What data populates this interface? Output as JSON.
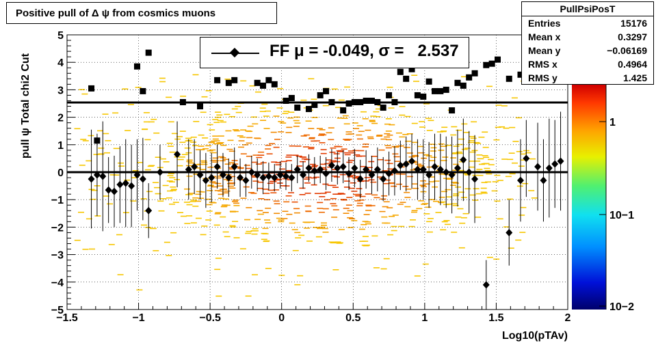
{
  "title": "Positive pull of Δ ψ from cosmics muons",
  "stats": {
    "name": "PullPsiPosT",
    "rows": [
      {
        "label": "Entries",
        "value": "15176"
      },
      {
        "label": "Mean x",
        "value": "0.3297"
      },
      {
        "label": "Mean y",
        "value": "−0.06169"
      },
      {
        "label": "RMS x",
        "value": "0.4964"
      },
      {
        "label": "RMS y",
        "value": "1.425"
      }
    ]
  },
  "legend": {
    "label": "FF μ = -0.049, σ =   2.537"
  },
  "chart_data": {
    "type": "scatter",
    "title": "Positive pull of Δ ψ from cosmics muons",
    "xlabel": "Log10(pTAv)",
    "ylabel": "pull ψ    Total chi2 Cut",
    "xlim": [
      -1.5,
      2
    ],
    "ylim": [
      -5,
      5
    ],
    "xticks": [
      "−1.5",
      "−1",
      "−0.5",
      "0",
      "0.5",
      "1",
      "1.5",
      "2"
    ],
    "yticks": [
      "−5",
      "−4",
      "−3",
      "−2",
      "−1",
      "0",
      "1",
      "2",
      "3",
      "4",
      "5"
    ],
    "grid": true,
    "colorbar": {
      "scale": "log",
      "labels": [
        "1",
        "10−1",
        "10−2"
      ]
    },
    "horizontal_lines": [
      0,
      2.537
    ],
    "series": [
      {
        "name": "FF μ = -0.049, σ =   2.537",
        "marker": "diamond",
        "x": [
          -1.33,
          -1.29,
          -1.25,
          -1.21,
          -1.17,
          -1.13,
          -1.09,
          -1.05,
          -1.01,
          -0.97,
          -0.93,
          -0.85,
          -0.73,
          -0.65,
          -0.61,
          -0.57,
          -0.53,
          -0.49,
          -0.45,
          -0.41,
          -0.37,
          -0.33,
          -0.29,
          -0.25,
          -0.21,
          -0.17,
          -0.13,
          -0.09,
          -0.05,
          -0.01,
          0.03,
          0.07,
          0.11,
          0.15,
          0.19,
          0.23,
          0.27,
          0.31,
          0.35,
          0.39,
          0.43,
          0.47,
          0.51,
          0.55,
          0.59,
          0.63,
          0.67,
          0.71,
          0.75,
          0.79,
          0.83,
          0.87,
          0.91,
          0.95,
          0.99,
          1.03,
          1.07,
          1.11,
          1.15,
          1.19,
          1.23,
          1.27,
          1.31,
          1.35,
          1.43,
          1.59,
          1.67,
          1.71,
          1.79,
          1.83,
          1.87,
          1.91,
          1.95
        ],
        "y": [
          -0.25,
          -0.1,
          -0.15,
          -0.65,
          -0.7,
          -0.45,
          -0.4,
          -0.5,
          -0.1,
          -0.25,
          -1.4,
          0.0,
          0.65,
          0.1,
          0.2,
          -0.1,
          -0.3,
          -0.2,
          0.2,
          -0.1,
          -0.2,
          0.2,
          -0.2,
          -0.3,
          0.0,
          -0.1,
          -0.2,
          -0.15,
          -0.2,
          -0.1,
          -0.15,
          -0.2,
          0.1,
          -0.1,
          0.15,
          0.05,
          0.1,
          -0.05,
          0.25,
          0.15,
          0.2,
          -0.05,
          0.15,
          -0.25,
          0.1,
          -0.1,
          0.1,
          -0.25,
          -0.05,
          0.05,
          0.25,
          0.3,
          0.4,
          0.1,
          0.1,
          -0.1,
          0.2,
          0.1,
          0.0,
          -0.1,
          0.15,
          0.45,
          0.0,
          -0.25,
          -4.1,
          -2.2,
          -0.3,
          0.5,
          0.2,
          -0.3,
          0.15,
          0.3,
          0.4
        ],
        "err_low": [
          1.8,
          1.5,
          2.0,
          1.2,
          1.3,
          1.4,
          1.6,
          1.5,
          1.3,
          1.5,
          1.0,
          1.0,
          1.2,
          1.1,
          1.0,
          0.9,
          1.0,
          0.9,
          0.8,
          0.8,
          0.7,
          0.7,
          0.7,
          0.6,
          0.6,
          0.6,
          0.6,
          0.5,
          0.5,
          0.5,
          0.5,
          0.5,
          0.5,
          0.5,
          0.5,
          0.5,
          0.5,
          0.6,
          0.6,
          0.6,
          0.6,
          0.6,
          0.7,
          0.7,
          0.7,
          0.7,
          0.8,
          0.8,
          0.8,
          0.9,
          0.9,
          1.0,
          1.0,
          1.1,
          1.1,
          1.2,
          1.2,
          1.3,
          1.3,
          1.4,
          1.4,
          1.5,
          1.5,
          1.6,
          0.9,
          1.2,
          1.5,
          1.4,
          1.6,
          1.5,
          1.8,
          1.6,
          1.8
        ],
        "err_high": [
          1.8,
          1.5,
          2.0,
          1.2,
          1.3,
          1.4,
          1.6,
          1.5,
          1.3,
          1.5,
          1.0,
          1.0,
          1.2,
          1.1,
          1.0,
          0.9,
          1.0,
          0.9,
          0.8,
          0.8,
          0.7,
          0.7,
          0.7,
          0.6,
          0.6,
          0.6,
          0.6,
          0.5,
          0.5,
          0.5,
          0.5,
          0.5,
          0.5,
          0.5,
          0.5,
          0.5,
          0.5,
          0.6,
          0.6,
          0.6,
          0.6,
          0.6,
          0.7,
          0.7,
          0.7,
          0.7,
          0.8,
          0.8,
          0.8,
          0.9,
          0.9,
          1.0,
          1.0,
          1.1,
          1.1,
          1.2,
          1.2,
          1.3,
          1.3,
          1.4,
          1.4,
          1.5,
          1.5,
          1.6,
          0.9,
          1.2,
          1.5,
          1.4,
          1.6,
          1.5,
          1.8,
          1.6,
          1.8
        ]
      },
      {
        "marker": "square",
        "x": [
          -1.33,
          -1.29,
          -1.01,
          -0.97,
          -0.93,
          -0.69,
          -0.57,
          -0.45,
          -0.37,
          -0.33,
          -0.17,
          -0.13,
          -0.09,
          -0.05,
          0.03,
          0.07,
          0.11,
          0.19,
          0.23,
          0.27,
          0.31,
          0.35,
          0.43,
          0.47,
          0.51,
          0.55,
          0.59,
          0.63,
          0.67,
          0.71,
          0.75,
          0.79,
          0.83,
          0.87,
          0.91,
          0.95,
          0.99,
          1.03,
          1.07,
          1.11,
          1.15,
          1.19,
          1.23,
          1.27,
          1.31,
          1.35,
          1.43,
          1.47,
          1.51,
          1.59,
          1.67,
          1.75
        ],
        "y": [
          3.05,
          1.15,
          3.85,
          2.95,
          4.35,
          2.55,
          2.4,
          3.35,
          3.25,
          3.35,
          3.25,
          3.15,
          3.35,
          3.2,
          2.6,
          2.7,
          2.35,
          2.3,
          2.45,
          2.8,
          2.95,
          2.55,
          2.25,
          2.5,
          2.55,
          2.55,
          2.6,
          2.6,
          2.55,
          2.35,
          2.8,
          2.55,
          3.65,
          3.4,
          3.75,
          2.8,
          2.75,
          3.3,
          2.95,
          2.95,
          3.0,
          2.25,
          3.25,
          3.15,
          3.45,
          3.6,
          3.9,
          3.95,
          4.1,
          3.4,
          3.55,
          3.8
        ]
      }
    ]
  }
}
